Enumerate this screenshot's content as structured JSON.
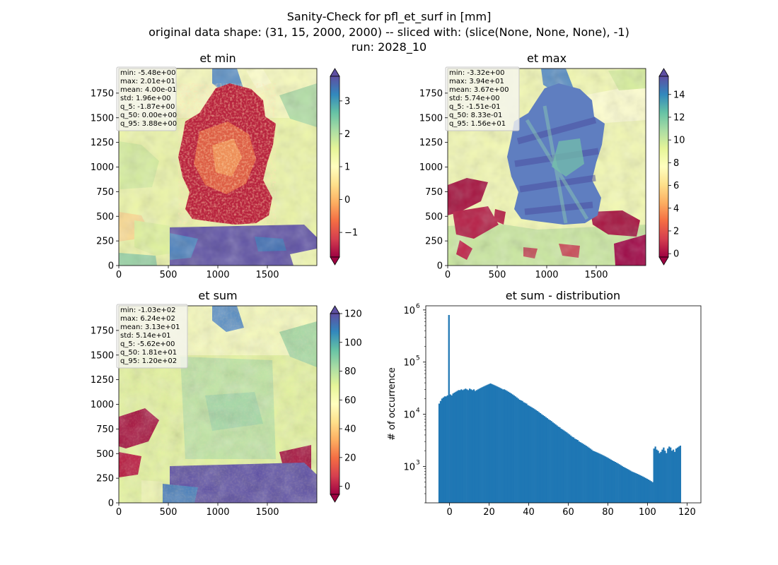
{
  "figure": {
    "title_lines": [
      "Sanity-Check for pfl_et_surf in [mm]",
      "original data shape: (31, 15, 2000, 2000) -- sliced with: (slice(None, None, None), -1)",
      "run: 2028_10"
    ]
  },
  "chart_data": [
    {
      "type": "heatmap",
      "title": "et min",
      "xticks": [
        "0",
        "500",
        "1000",
        "1500"
      ],
      "yticks": [
        "0",
        "250",
        "500",
        "750",
        "1000",
        "1250",
        "1500",
        "1750"
      ],
      "xlim": [
        0,
        2000
      ],
      "ylim": [
        0,
        2000
      ],
      "colormap": "Spectral",
      "colorbar": {
        "ticks": [
          "3",
          "2",
          "1",
          "0",
          "−1"
        ],
        "tick_values": [
          3,
          2,
          1,
          0,
          -1
        ],
        "vmin": -1.75,
        "vmax": 3.75,
        "extend": "both"
      },
      "stats": [
        "min: -5.48e+00",
        "max: 2.01e+01",
        "mean: 4.00e-01",
        "std: 1.96e+00",
        "q_5: -1.87e+00",
        "q_50: 0.00e+00",
        "q_95: 3.88e+00"
      ]
    },
    {
      "type": "heatmap",
      "title": "et max",
      "xticks": [
        "0",
        "500",
        "1000",
        "1500"
      ],
      "yticks": [
        "0",
        "250",
        "500",
        "750",
        "1000",
        "1250",
        "1500",
        "1750"
      ],
      "xlim": [
        0,
        2000
      ],
      "ylim": [
        0,
        2000
      ],
      "colormap": "Spectral",
      "colorbar": {
        "ticks": [
          "14",
          "12",
          "10",
          "8",
          "6",
          "4",
          "2",
          "0"
        ],
        "tick_values": [
          14,
          12,
          10,
          8,
          6,
          4,
          2,
          0
        ],
        "vmin": -0.3,
        "vmax": 15.6,
        "extend": "both"
      },
      "stats": [
        "min: -3.32e+00",
        "max: 3.94e+01",
        "mean: 3.67e+00",
        "std: 5.74e+00",
        "q_5: -1.51e-01",
        "q_50: 8.33e-01",
        "q_95: 1.56e+01"
      ]
    },
    {
      "type": "heatmap",
      "title": "et sum",
      "xticks": [
        "0",
        "500",
        "1000",
        "1500"
      ],
      "yticks": [
        "0",
        "250",
        "500",
        "750",
        "1000",
        "1250",
        "1500",
        "1750"
      ],
      "xlim": [
        0,
        2000
      ],
      "ylim": [
        0,
        2000
      ],
      "colormap": "Spectral",
      "colorbar": {
        "ticks": [
          "120",
          "100",
          "80",
          "60",
          "40",
          "20",
          "0"
        ],
        "tick_values": [
          120,
          100,
          80,
          60,
          40,
          20,
          0
        ],
        "vmin": -5.6,
        "vmax": 120,
        "extend": "both"
      },
      "stats": [
        "min: -1.03e+02",
        "max: 6.24e+02",
        "mean: 3.13e+01",
        "std: 5.14e+01",
        "q_5: -5.62e+00",
        "q_50: 1.81e+01",
        "q_95: 1.20e+02"
      ]
    },
    {
      "type": "bar",
      "title": "et sum - distribution",
      "ylabel": "# of occurrence",
      "xlabel": "",
      "yscale": "log",
      "xlim": [
        -12,
        127
      ],
      "ylim": [
        200,
        1200000
      ],
      "xticks": [
        0,
        20,
        40,
        60,
        80,
        100,
        120
      ],
      "xtick_labels": [
        "0",
        "20",
        "40",
        "60",
        "80",
        "100",
        "120"
      ],
      "yticks": [
        1000,
        10000,
        100000,
        1000000
      ],
      "ytick_labels": [
        [
          "10",
          "3"
        ],
        [
          "10",
          "4"
        ],
        [
          "10",
          "5"
        ],
        [
          "10",
          "6"
        ]
      ],
      "bar_color": "#1f77b4",
      "bin_start": -5.6,
      "bin_width": 0.7,
      "values": [
        16000,
        18000,
        20000,
        21000,
        22000,
        22000,
        23000,
        800000,
        24000,
        23000,
        25000,
        26000,
        27000,
        28000,
        29000,
        29000,
        30000,
        29000,
        30000,
        31000,
        30000,
        29000,
        31000,
        30000,
        29000,
        30000,
        28000,
        29000,
        30000,
        31000,
        32000,
        33000,
        34000,
        35000,
        36000,
        37000,
        38000,
        39000,
        38000,
        37000,
        36000,
        35000,
        34000,
        33000,
        32000,
        31000,
        30000,
        30000,
        29000,
        28000,
        27000,
        26000,
        25000,
        24000,
        23000,
        22000,
        21000,
        20000,
        19000,
        18500,
        18000,
        17000,
        16500,
        16000,
        15000,
        14500,
        14000,
        13500,
        13000,
        12500,
        12000,
        11500,
        11000,
        10500,
        10000,
        9600,
        9200,
        8800,
        8400,
        8000,
        7700,
        7400,
        7000,
        6700,
        6400,
        6100,
        5800,
        5600,
        5300,
        5100,
        4900,
        4700,
        4500,
        4300,
        4100,
        3900,
        3700,
        3600,
        3400,
        3300,
        3200,
        3000,
        2900,
        2800,
        2700,
        2600,
        2500,
        2400,
        2300,
        2200,
        2100,
        2000,
        1950,
        1900,
        1850,
        1800,
        1750,
        1700,
        1650,
        1600,
        1550,
        1500,
        1450,
        1400,
        1350,
        1300,
        1260,
        1220,
        1180,
        1140,
        1100,
        1060,
        1020,
        980,
        950,
        920,
        890,
        860,
        830,
        800,
        780,
        760,
        740,
        720,
        700,
        680,
        660,
        640,
        620,
        600,
        580,
        560,
        540,
        520,
        500,
        2200,
        2400,
        2100,
        2000,
        1800,
        1900,
        2100,
        2300,
        2000,
        1800,
        2200,
        2400,
        2300,
        2000,
        2100,
        1900,
        2200,
        2300,
        2400,
        2500
      ]
    }
  ]
}
